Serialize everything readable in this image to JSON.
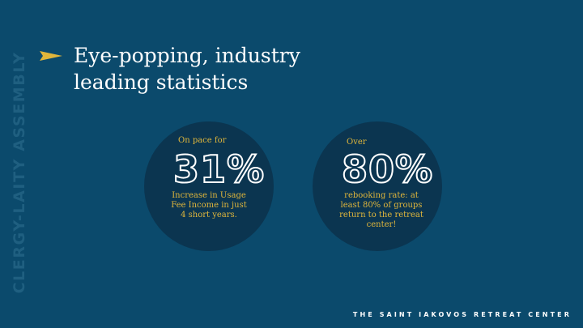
{
  "side_text": "CLERGY-LAITY ASSEMBLY",
  "title": {
    "line1": "Eye-popping, industry",
    "line2": "leading statistics"
  },
  "stats": [
    {
      "prefix": "On pace for",
      "value": "31%",
      "description": "Increase in Usage Fee Income in just 4 short years."
    },
    {
      "prefix": "Over",
      "value": "80%",
      "description": "rebooking rate: at least 80% of groups return to the retreat center!"
    }
  ],
  "footer": "THE SAINT IAKOVOS RETREAT CENTER",
  "colors": {
    "background": "#0b4a6c",
    "circle": "#0b3550",
    "accent": "#e0b63b",
    "side_text": "#1f5f80"
  },
  "icons": {
    "bullet": "arrow-icon"
  }
}
